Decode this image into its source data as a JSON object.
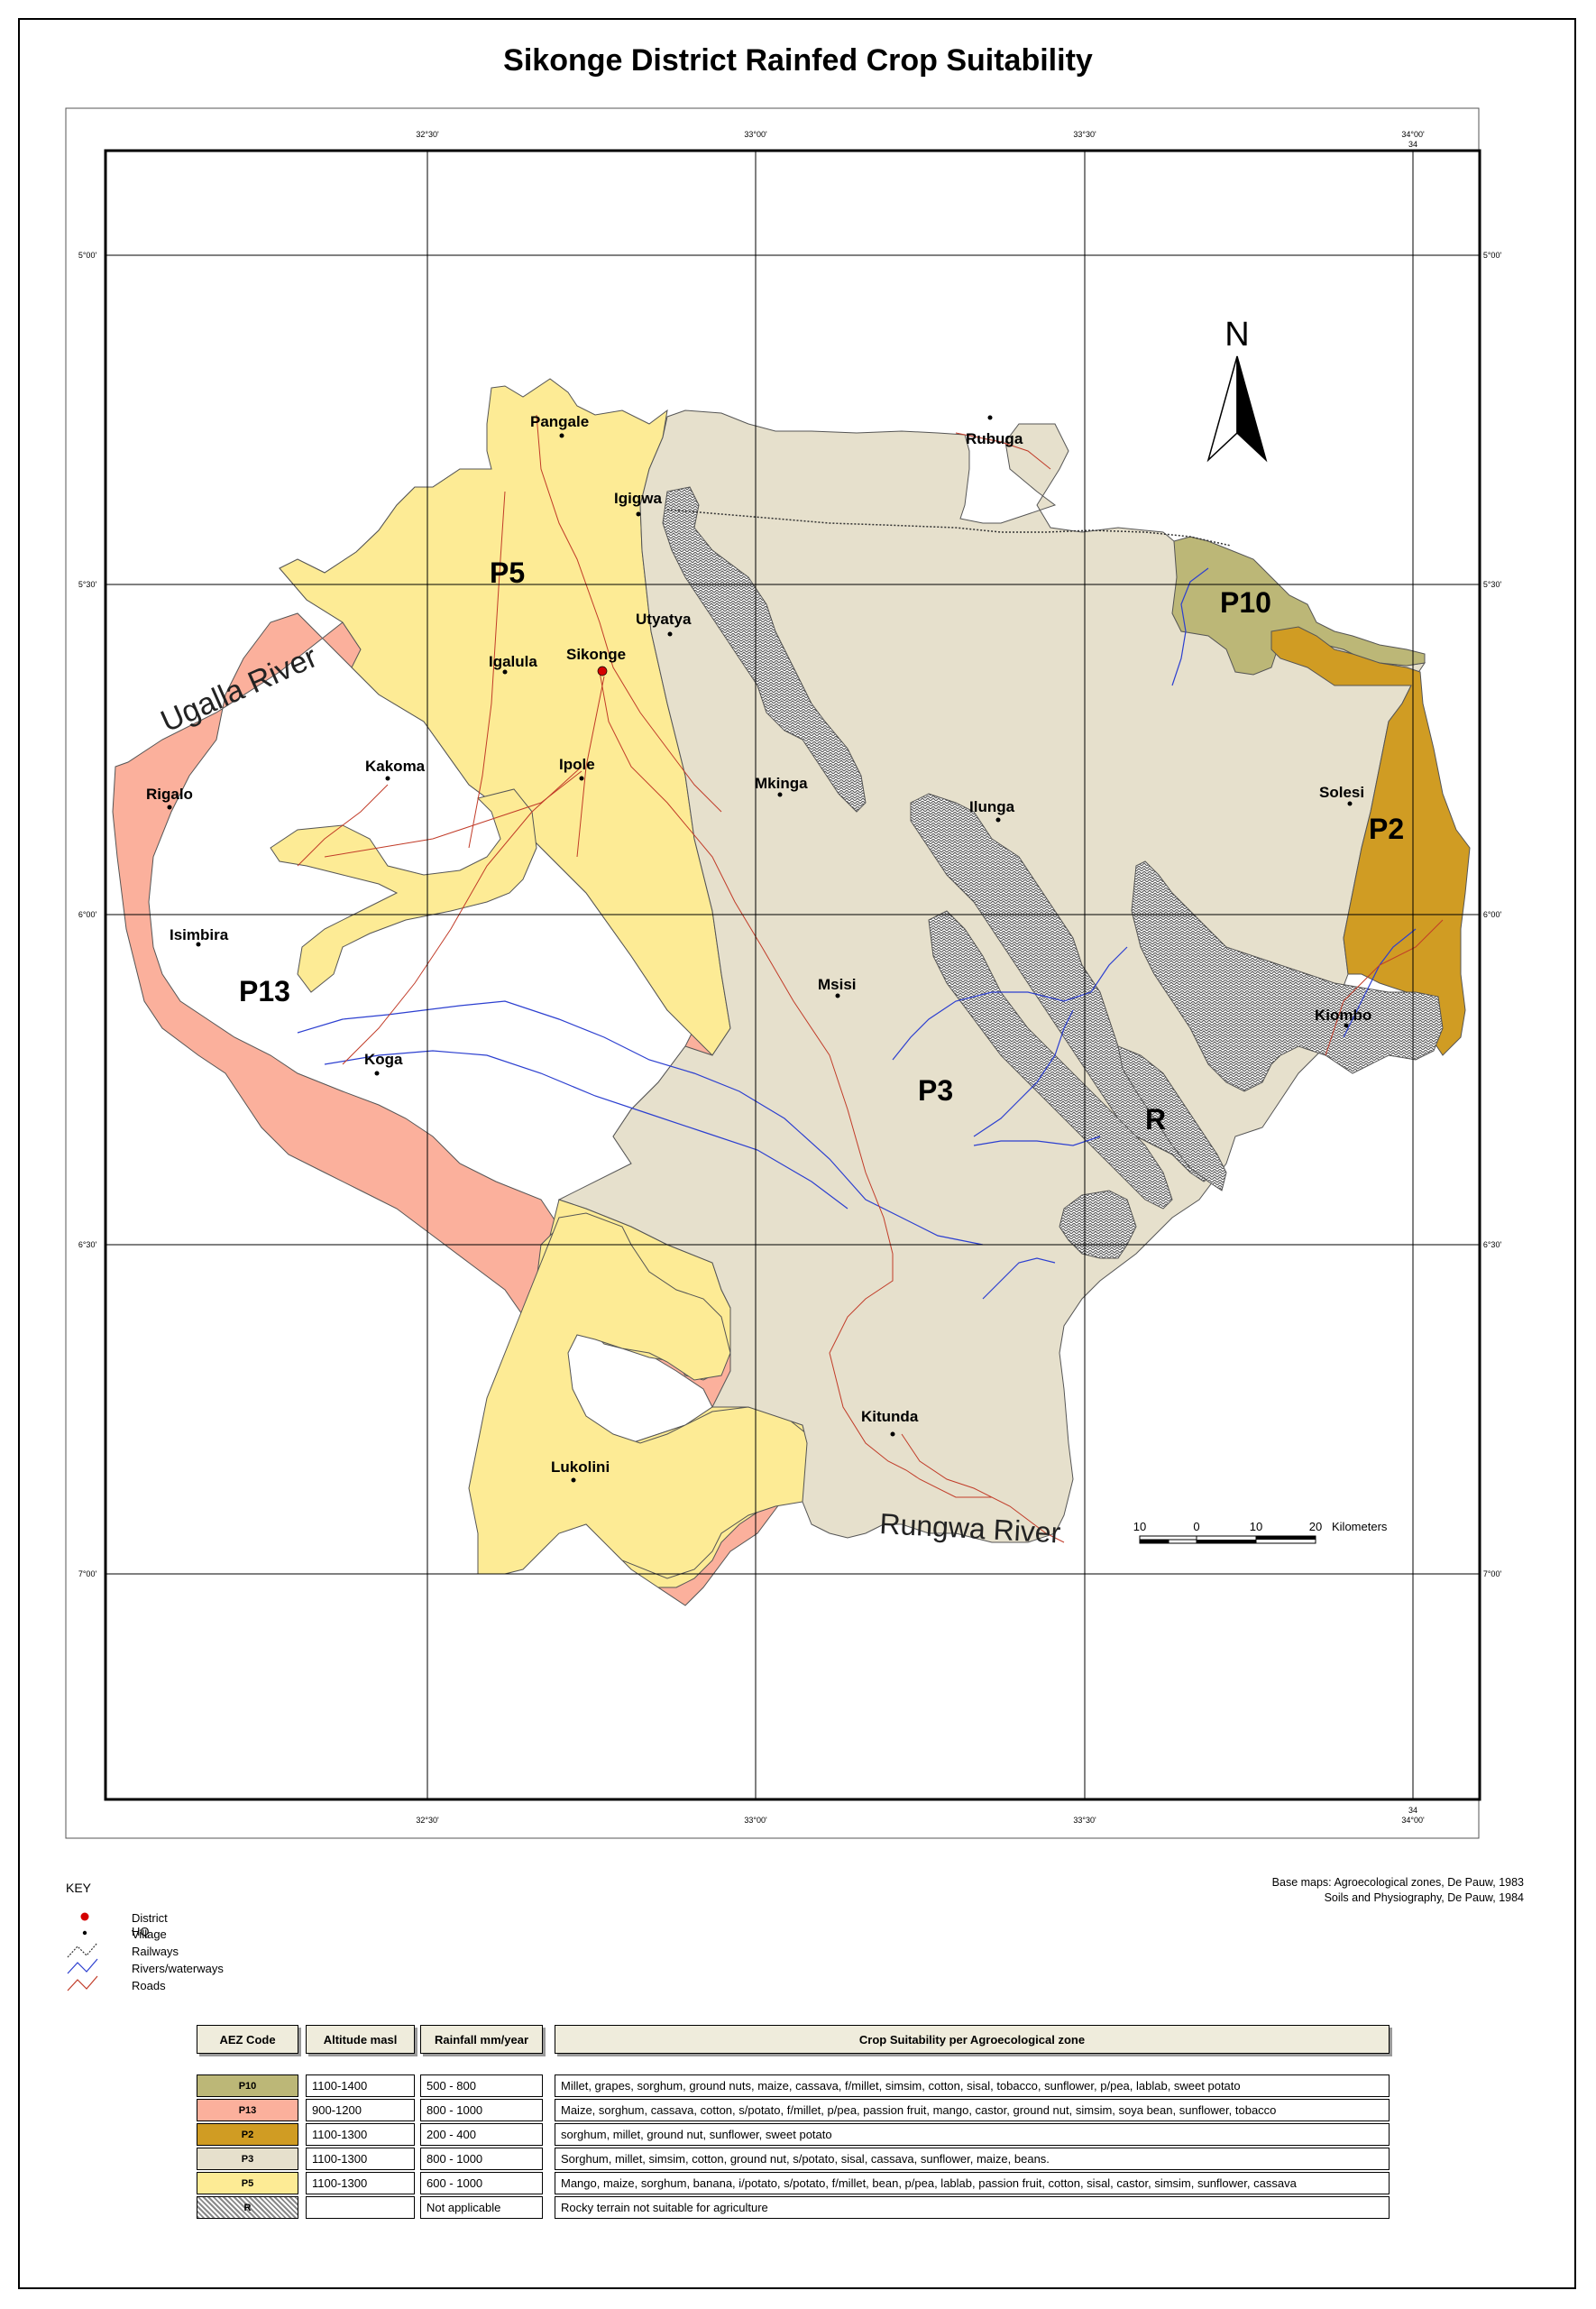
{
  "title": "Sikonge District Rainfed Crop Suitability",
  "colors": {
    "P5": "#fdeb95",
    "P13": "#fbb09c",
    "P3": "#e6e0cc",
    "P10": "#bcb777",
    "P2": "#d09c23",
    "rock": "#8a8a8a",
    "river": "#2c3fd0",
    "road": "#c13b28",
    "hq": "#d40000"
  },
  "grid_labels": {
    "top": [
      "32°30'",
      "33°00'",
      "33°30'",
      "34°00'"
    ],
    "top_extra": "34",
    "bottom": [
      "32°30'",
      "33°00'",
      "33°30'",
      "34°00'"
    ],
    "bottom_extra": "34",
    "left": [
      "5°00'",
      "5°30'",
      "6°00'",
      "6°30'",
      "7°00'"
    ],
    "right": [
      "5°00'",
      "5°30'",
      "6°00'",
      "6°30'",
      "7°00'"
    ]
  },
  "north_label": "N",
  "zone_labels": {
    "P5": "P5",
    "P13": "P13",
    "P3": "P3",
    "P10": "P10",
    "P2": "P2",
    "R": "R"
  },
  "villages": [
    "Pangale",
    "Igigwa",
    "Rubuga",
    "Utyatya",
    "Igalula",
    "Sikonge",
    "Kakoma",
    "Ipole",
    "Rigalo",
    "Mkinga",
    "Ilunga",
    "Solesi",
    "Isimbira",
    "Msisi",
    "Kiombo",
    "Koga",
    "Kitunda",
    "Lukolini"
  ],
  "rivers": {
    "ugalla": "Ugalla River",
    "rungwa": "Rungwa River"
  },
  "scale_bar": {
    "ticks": [
      "10",
      "0",
      "10",
      "20"
    ],
    "unit": "Kilometers"
  },
  "key": {
    "title": "KEY",
    "items": [
      "District HQ",
      "Village",
      "Railways",
      "Rivers/waterways",
      "Roads"
    ]
  },
  "source": {
    "line1": "Base maps: Agroecological zones, De Pauw, 1983",
    "line2": "Soils and Physiography, De Pauw, 1984"
  },
  "table": {
    "headers": [
      "AEZ Code",
      "Altitude masl",
      "Rainfall mm/year",
      "Crop Suitability per Agroecological zone"
    ],
    "rows": [
      {
        "code": "P10",
        "color": "#bcb777",
        "altitude": "1100-1400",
        "rainfall": "500 - 800",
        "crops": "Millet, grapes, sorghum, ground nuts, maize, cassava, f/millet, simsim, cotton, sisal, tobacco, sunflower, p/pea, lablab, sweet potato"
      },
      {
        "code": "P13",
        "color": "#fbb09c",
        "altitude": "900-1200",
        "rainfall": "800 - 1000",
        "crops": "Maize, sorghum, cassava, cotton, s/potato, f/millet, p/pea, passion fruit, mango, castor, ground nut, simsim, soya bean, sunflower, tobacco"
      },
      {
        "code": "P2",
        "color": "#d09c23",
        "altitude": "1100-1300",
        "rainfall": "200 - 400",
        "crops": "sorghum, millet, ground nut, sunflower, sweet potato"
      },
      {
        "code": "P3",
        "color": "#e6e0cc",
        "altitude": "1100-1300",
        "rainfall": "800 - 1000",
        "crops": "Sorghum, millet, simsim, cotton, ground nut, s/potato, sisal, cassava, sunflower, maize, beans."
      },
      {
        "code": "P5",
        "color": "#fdeb95",
        "altitude": "1100-1300",
        "rainfall": "600 - 1000",
        "crops": "Mango, maize, sorghum, banana, i/potato, s/potato, f/millet, bean, p/pea, lablab, passion fruit, cotton, sisal, castor, simsim, sunflower, cassava"
      },
      {
        "code": "R",
        "color": "#8a8a8a",
        "altitude": "",
        "rainfall": "Not applicable",
        "crops": "Rocky terrain not suitable for agriculture"
      }
    ]
  }
}
